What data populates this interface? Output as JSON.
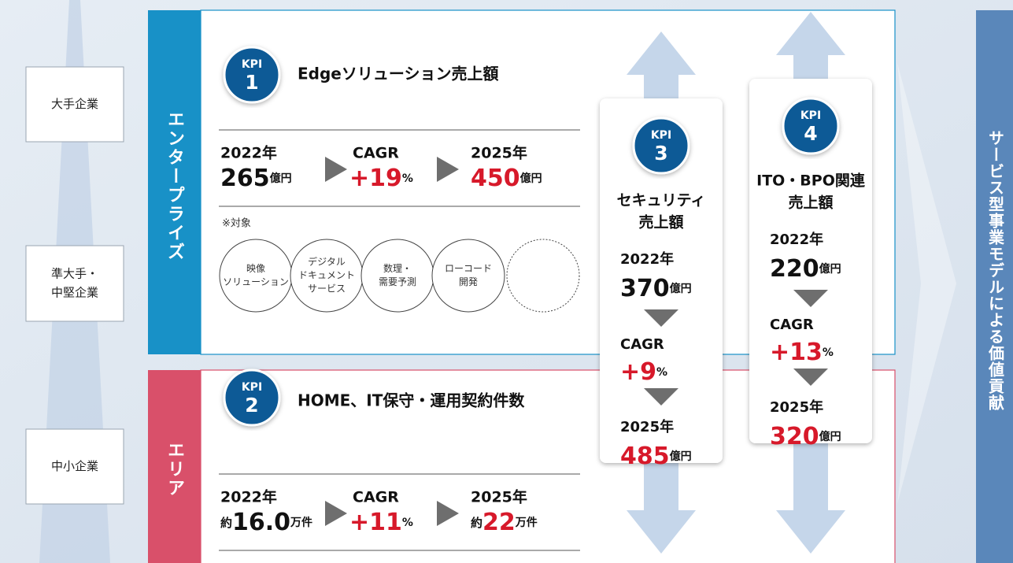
{
  "segments": [
    {
      "lines": [
        "大手企業"
      ]
    },
    {
      "lines": [
        "準大手・",
        "中堅企業"
      ]
    },
    {
      "lines": [
        "中小企業"
      ]
    }
  ],
  "enterprise": {
    "label": "エンタープライズ",
    "kpi": {
      "badge": "KPI",
      "number": 1,
      "title": "Edgeソリューション売上額",
      "start": {
        "year": "2022年",
        "value": 265,
        "unit": "億円"
      },
      "cagr": {
        "label": "CAGR",
        "value": "+19",
        "unit": "%"
      },
      "end": {
        "year": "2025年",
        "value": 450,
        "unit": "億円"
      }
    },
    "note": "※対象",
    "targets": [
      [
        "映像",
        "ソリューション"
      ],
      [
        "デジタル",
        "ドキュメント",
        "サービス"
      ],
      [
        "数理・",
        "需要予測"
      ],
      [
        "ローコード",
        "開発"
      ]
    ]
  },
  "area": {
    "label": "エリア",
    "kpi": {
      "badge": "KPI",
      "number": 2,
      "title": "HOME、IT保守・運用契約件数",
      "start": {
        "year": "2022年",
        "prefix": "約",
        "value": "16.0",
        "unit": "万件"
      },
      "cagr": {
        "label": "CAGR",
        "value": "+11",
        "unit": "%"
      },
      "end": {
        "year": "2025年",
        "prefix": "約",
        "value": 22,
        "unit": "万件"
      }
    }
  },
  "kpi3": {
    "badge": "KPI",
    "number": 3,
    "title_lines": [
      "セキュリティ",
      "売上額"
    ],
    "start": {
      "year": "2022年",
      "value": 370,
      "unit": "億円"
    },
    "cagr": {
      "label": "CAGR",
      "value": "+9",
      "unit": "%"
    },
    "end": {
      "year": "2025年",
      "value": 485,
      "unit": "億円"
    }
  },
  "kpi4": {
    "badge": "KPI",
    "number": 4,
    "title_lines": [
      "ITO・BPO関連",
      "売上額"
    ],
    "start": {
      "year": "2022年",
      "value": 220,
      "unit": "億円"
    },
    "cagr": {
      "label": "CAGR",
      "value": "+13",
      "unit": "%"
    },
    "end": {
      "year": "2025年",
      "value": 320,
      "unit": "億円"
    }
  },
  "side_label": "サービス型事業モデルによる価値貢献"
}
